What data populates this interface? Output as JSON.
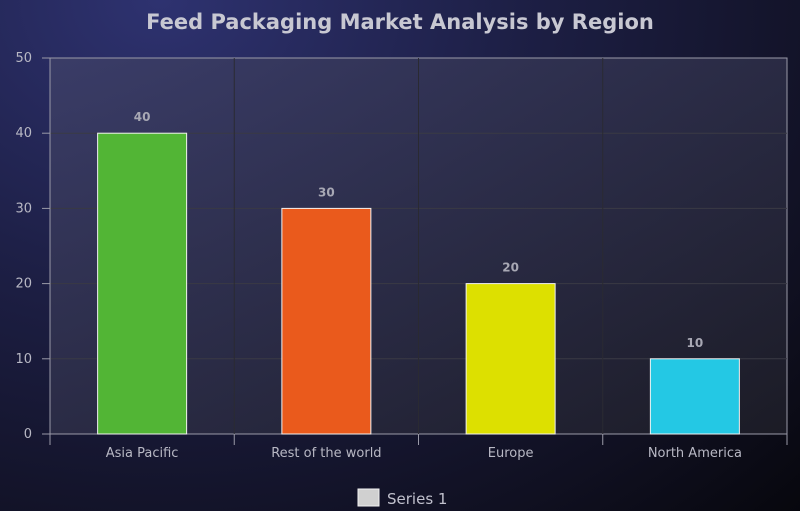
{
  "chart_data": {
    "type": "bar",
    "title": "Feed Packaging Market Analysis by Region",
    "categories": [
      "Asia Pacific",
      "Rest of the world",
      "Europe",
      "North America"
    ],
    "series": [
      {
        "name": "Series 1",
        "values": [
          40,
          30,
          20,
          10
        ],
        "colors": [
          "#52b535",
          "#ea5a1c",
          "#dde000",
          "#24c8e4"
        ],
        "legend_color": "#d0d0d0"
      }
    ],
    "ylim": [
      0,
      50
    ],
    "yticks": [
      0,
      10,
      20,
      30,
      40,
      50
    ],
    "grid": true,
    "legend_position": "bottom-center",
    "show_data_labels": true
  }
}
